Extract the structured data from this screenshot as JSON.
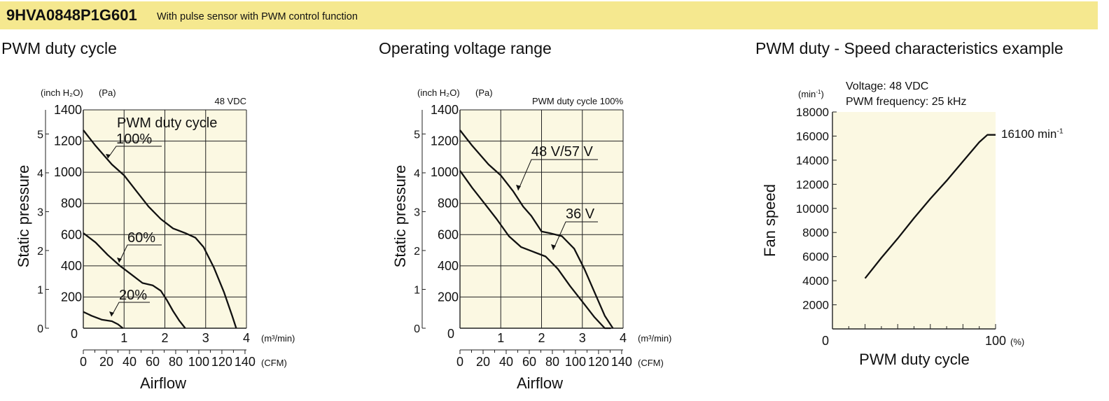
{
  "banner": {
    "model": "9HVA0848P1G601",
    "description": "With pulse sensor with PWM control function"
  },
  "chart_data": [
    {
      "type": "line",
      "title": "PWM duty cycle",
      "annotation": "48 VDC",
      "legend_title": "PWM duty cycle",
      "xlabel": "Airflow",
      "ylabel": "Static pressure",
      "x_unit_primary": "(m³/min)",
      "x_unit_secondary": "(CFM)",
      "y_unit_primary": "(Pa)",
      "y_unit_secondary": "(inch H₂O)",
      "xlim": [
        0,
        4
      ],
      "ylim": [
        0,
        1400
      ],
      "x_ticks": [
        "0",
        "1",
        "2",
        "3",
        "4"
      ],
      "x2_ticks": [
        "0",
        "20",
        "40",
        "60",
        "80",
        "100",
        "120",
        "140"
      ],
      "y_ticks": [
        "0",
        "200",
        "400",
        "600",
        "800",
        "1000",
        "1200",
        "1400"
      ],
      "y2_ticks": [
        "0",
        "1",
        "2",
        "3",
        "4",
        "5"
      ],
      "grid": true,
      "series": [
        {
          "name": "100%",
          "x": [
            0,
            0.3,
            0.7,
            1.0,
            1.3,
            1.6,
            1.9,
            2.2,
            2.5,
            2.75,
            2.95,
            3.2,
            3.45,
            3.65,
            3.75
          ],
          "y": [
            1270,
            1170,
            1050,
            980,
            880,
            780,
            700,
            640,
            610,
            580,
            520,
            390,
            230,
            80,
            0
          ]
        },
        {
          "name": "60%",
          "x": [
            0,
            0.3,
            0.6,
            0.9,
            1.2,
            1.45,
            1.7,
            1.9,
            2.05,
            2.2,
            2.35,
            2.5
          ],
          "y": [
            610,
            550,
            470,
            400,
            340,
            290,
            275,
            240,
            180,
            110,
            50,
            0
          ]
        },
        {
          "name": "20%",
          "x": [
            0,
            0.2,
            0.45,
            0.7,
            0.85,
            0.97
          ],
          "y": [
            105,
            80,
            55,
            45,
            25,
            0
          ]
        }
      ]
    },
    {
      "type": "line",
      "title": "Operating voltage range",
      "annotation": "PWM duty cycle 100%",
      "xlabel": "Airflow",
      "ylabel": "Static pressure",
      "x_unit_primary": "(m³/min)",
      "x_unit_secondary": "(CFM)",
      "y_unit_primary": "(Pa)",
      "y_unit_secondary": "(inch H₂O)",
      "xlim": [
        0,
        4
      ],
      "ylim": [
        0,
        1400
      ],
      "x_ticks": [
        "0",
        "1",
        "2",
        "3",
        "4"
      ],
      "x2_ticks": [
        "0",
        "20",
        "40",
        "60",
        "80",
        "100",
        "120",
        "140"
      ],
      "y_ticks": [
        "0",
        "200",
        "400",
        "600",
        "800",
        "1000",
        "1200",
        "1400"
      ],
      "y2_ticks": [
        "0",
        "1",
        "2",
        "3",
        "4",
        "5"
      ],
      "grid": true,
      "series": [
        {
          "name": "48 V/57 V",
          "x": [
            0,
            0.3,
            0.7,
            1.0,
            1.3,
            1.55,
            1.75,
            1.9,
            2.0,
            2.2,
            2.5,
            2.8,
            3.05,
            3.3,
            3.55,
            3.75
          ],
          "y": [
            1270,
            1170,
            1050,
            980,
            880,
            780,
            720,
            660,
            620,
            610,
            590,
            510,
            380,
            230,
            80,
            0
          ]
        },
        {
          "name": "36 V",
          "x": [
            0,
            0.3,
            0.6,
            0.9,
            1.2,
            1.5,
            1.8,
            2.1,
            2.4,
            2.7,
            3.0,
            3.3,
            3.55,
            3.7
          ],
          "y": [
            1010,
            900,
            800,
            700,
            590,
            520,
            490,
            460,
            380,
            270,
            170,
            70,
            0,
            0
          ]
        }
      ]
    },
    {
      "type": "line",
      "title": "PWM duty - Speed characteristics example",
      "annotation_lines": [
        "Voltage: 48 VDC",
        "PWM frequency: 25 kHz"
      ],
      "end_label": "16100 min",
      "end_label_sup": "-1",
      "xlabel": "PWM duty cycle",
      "ylabel": "Fan speed",
      "x_unit": "(%)",
      "y_unit": "(min",
      "y_unit_sup": "-1",
      "y_unit_close": ")",
      "xlim": [
        0,
        100
      ],
      "ylim": [
        0,
        18000
      ],
      "x_tick_labels": [
        "0",
        "100"
      ],
      "y_ticks": [
        "2000",
        "4000",
        "6000",
        "8000",
        "10000",
        "12000",
        "14000",
        "16000",
        "18000"
      ],
      "grid": false,
      "series": [
        {
          "name": "",
          "x": [
            20,
            30,
            40,
            50,
            60,
            70,
            80,
            90,
            95,
            100
          ],
          "y": [
            4200,
            5900,
            7500,
            9200,
            10800,
            12300,
            13900,
            15500,
            16100,
            16100
          ]
        }
      ]
    }
  ]
}
